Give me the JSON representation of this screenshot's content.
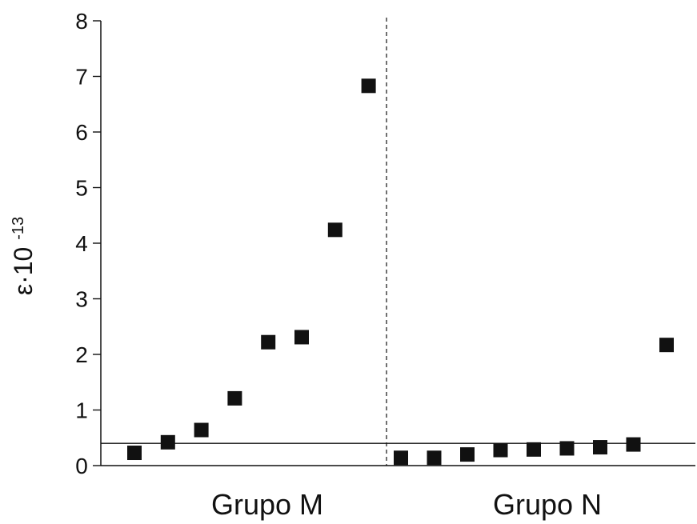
{
  "chart_data": {
    "type": "scatter",
    "ylabel": "ε·10⁻¹³",
    "ylabel_parts": {
      "main": "ε·10",
      "exponent": "-13"
    },
    "ylim": [
      0,
      8
    ],
    "yticks": [
      "0",
      "1",
      "2",
      "3",
      "4",
      "5",
      "6",
      "7",
      "8"
    ],
    "reference_line_y": 0.4,
    "marker": "square",
    "marker_color": "#111111",
    "groups": [
      {
        "label": "Grupo M",
        "values": [
          0.23,
          0.42,
          0.64,
          1.21,
          2.22,
          2.31,
          4.24,
          6.83
        ]
      },
      {
        "label": "Grupo N",
        "values": [
          0.14,
          0.14,
          0.2,
          0.28,
          0.29,
          0.31,
          0.33,
          0.38,
          2.17
        ]
      }
    ]
  }
}
